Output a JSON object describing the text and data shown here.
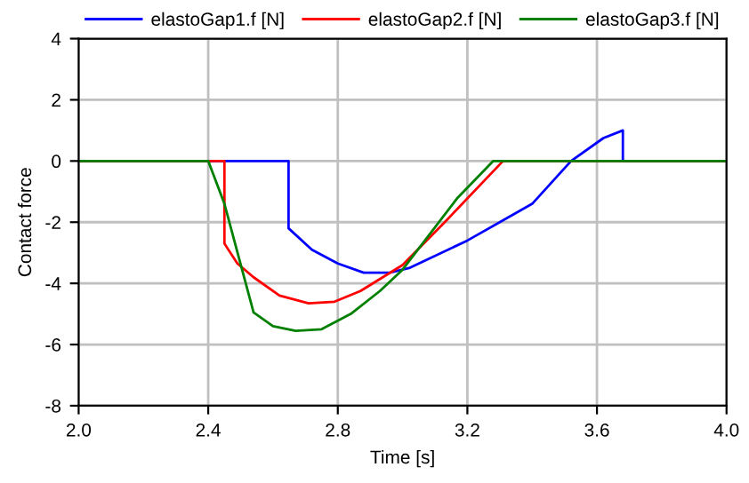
{
  "chart_data": {
    "type": "line",
    "xlabel": "Time [s]",
    "ylabel": "Contact force",
    "xlim": [
      2.0,
      4.0
    ],
    "ylim": [
      -8,
      4
    ],
    "xticks": [
      "2.0",
      2.4,
      2.8,
      3.2,
      3.6,
      "4.0"
    ],
    "yticks": [
      -8,
      -6,
      -4,
      -2,
      0,
      2,
      4
    ],
    "grid": true,
    "legend": "top",
    "line_style": "solid",
    "marker": "none",
    "series": [
      {
        "name": "elastoGap1.f [N]",
        "color": "#0000ff",
        "x": [
          2.0,
          2.648,
          2.648,
          2.72,
          2.8,
          2.88,
          2.96,
          3.02,
          3.2,
          3.4,
          3.52,
          3.62,
          3.68,
          3.68,
          4.0
        ],
        "values": [
          0,
          0,
          -2.2,
          -2.9,
          -3.35,
          -3.65,
          -3.65,
          -3.5,
          -2.6,
          -1.4,
          0,
          0.75,
          1.0,
          0,
          0
        ]
      },
      {
        "name": "elastoGap2.f [N]",
        "color": "#ff0000",
        "x": [
          2.0,
          2.45,
          2.45,
          2.49,
          2.54,
          2.62,
          2.71,
          2.79,
          2.87,
          3.0,
          3.13,
          3.31,
          4.0
        ],
        "values": [
          0,
          0,
          -2.7,
          -3.35,
          -3.8,
          -4.4,
          -4.65,
          -4.6,
          -4.25,
          -3.4,
          -2.0,
          0,
          0
        ]
      },
      {
        "name": "elastoGap3.f [N]",
        "color": "#008000",
        "x": [
          2.0,
          2.4,
          2.45,
          2.54,
          2.6,
          2.67,
          2.75,
          2.84,
          2.93,
          3.0,
          3.17,
          3.28,
          4.0
        ],
        "values": [
          0,
          0,
          -1.4,
          -4.95,
          -5.4,
          -5.55,
          -5.5,
          -5.0,
          -4.25,
          -3.55,
          -1.2,
          0,
          0
        ]
      }
    ]
  }
}
